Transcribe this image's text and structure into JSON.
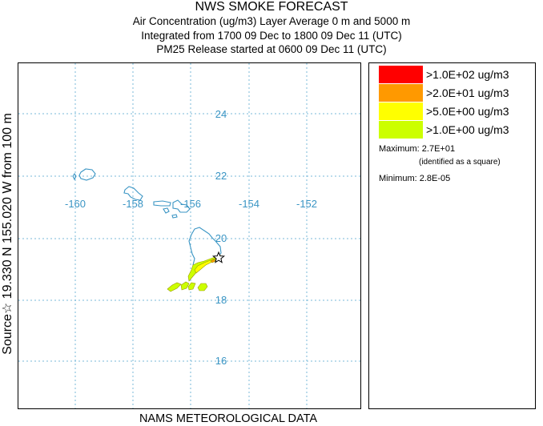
{
  "header": {
    "title": "NWS SMOKE FORECAST",
    "line1": "Air Concentration (ug/m3) Layer Average    0 m and  5000 m",
    "line2": "Integrated from 1700 09 Dec to 1800 09 Dec 11 (UTC)",
    "line3": "PM25 Release started at 0600 09 Dec 11 (UTC)"
  },
  "side_label": "Source☆ 19.330 N 155.020 W    from  100 m",
  "footer": "NAMS METEOROLOGICAL DATA",
  "map": {
    "longitude_labels": [
      "-160",
      "-158",
      "-156",
      "-154",
      "-152"
    ],
    "latitude_labels": [
      "24",
      "22",
      "20",
      "18",
      "16"
    ],
    "grid_color": "#7ab8d9",
    "coast_color": "#3a95c4",
    "source_marker": "star-icon"
  },
  "legend": {
    "entries": [
      {
        "color": "#ff0000",
        "label": ">1.0E+02 ug/m3"
      },
      {
        "color": "#ff9900",
        "label": ">2.0E+01 ug/m3"
      },
      {
        "color": "#ffff00",
        "label": ">5.0E+00 ug/m3"
      },
      {
        "color": "#ccff00",
        "label": ">1.0E+00 ug/m3"
      }
    ],
    "maximum": "Maximum: 2.7E+01",
    "maximum_note": "(identified as a square)",
    "minimum": "Minimum: 2.8E-05"
  }
}
